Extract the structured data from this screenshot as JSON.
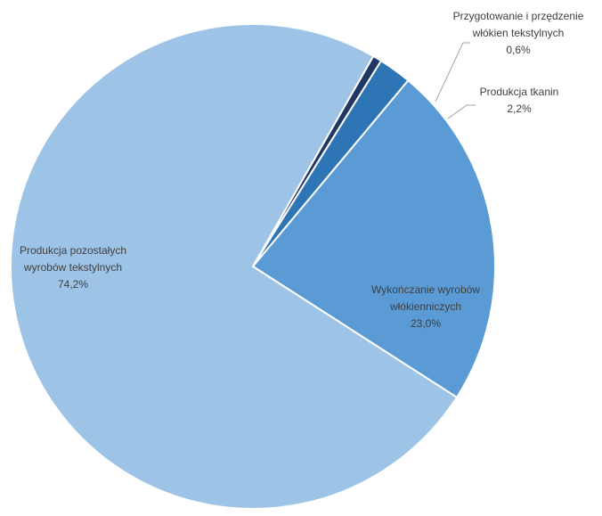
{
  "chart_data": {
    "type": "pie",
    "title": "",
    "slices": [
      {
        "label_lines": [
          "Przygotowanie i przędzenie",
          "włókien tekstylnych"
        ],
        "value": 0.6,
        "value_label": "0,6%",
        "color": "#1f3864",
        "label_placement": "outside"
      },
      {
        "label_lines": [
          "Produkcja tkanin"
        ],
        "value": 2.2,
        "value_label": "2,2%",
        "color": "#2e75b6",
        "label_placement": "outside"
      },
      {
        "label_lines": [
          "Wykończanie wyrobów",
          "włókienniczych"
        ],
        "value": 23.0,
        "value_label": "23,0%",
        "color": "#5b9bd5",
        "label_placement": "inside"
      },
      {
        "label_lines": [
          "Produkcja pozostałych",
          "wyrobów tekstylnych"
        ],
        "value": 74.2,
        "value_label": "74,2%",
        "color": "#9dc3e6",
        "label_placement": "inside"
      }
    ],
    "start_angle_deg": 29.8,
    "direction": "clockwise",
    "legend": "none",
    "slice_border_color": "#ffffff"
  }
}
